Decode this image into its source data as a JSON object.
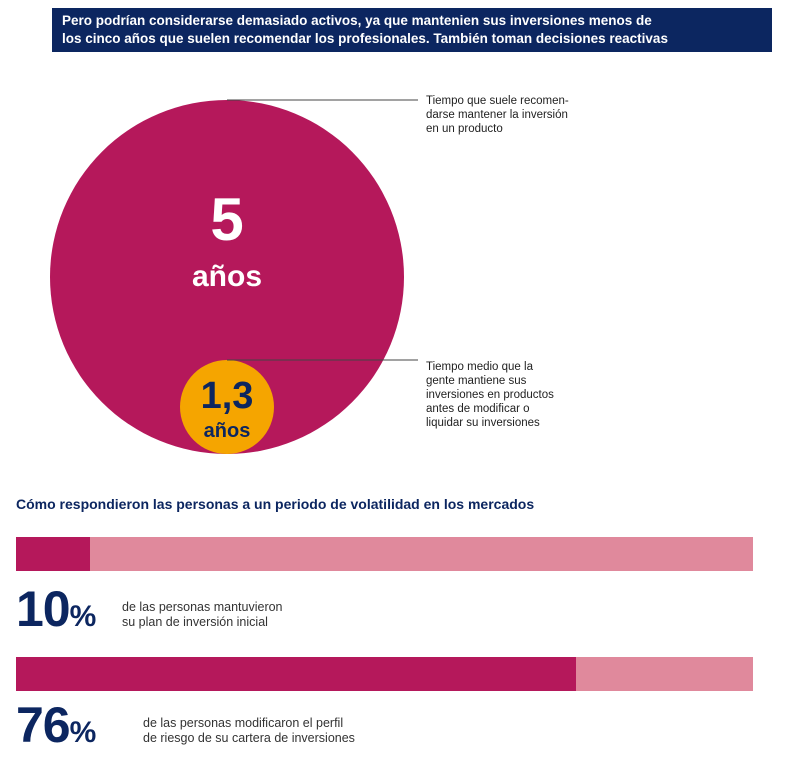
{
  "banner": {
    "line1": "Pero podrían considerarse demasiado activos, ya que mantenien sus inversiones menos de",
    "line2": "los cinco años que suelen recomendar los profesionales. También toman decisiones reactivas"
  },
  "circles": {
    "big": {
      "value": "5",
      "unit": "años",
      "color": "#b5185b",
      "annotation": [
        "Tiempo que suele recomen-",
        "darse mantener la inversión",
        "en un producto"
      ]
    },
    "small": {
      "value": "1,3",
      "unit": "años",
      "color": "#f5a500",
      "annotation": [
        "Tiempo medio que la",
        "gente mantiene sus",
        "inversiones en productos",
        "antes de modificar o",
        "liquidar su inversiones"
      ]
    }
  },
  "section_title": "Cómo respondieron las personas a un periodo de volatilidad en los mercados",
  "chart_data": {
    "type": "bar",
    "title": "Cómo respondieron las personas a un periodo de volatilidad en los mercados",
    "orientation": "horizontal",
    "ylim": [
      0,
      100
    ],
    "values": [
      10,
      76
    ],
    "labels": [
      "10%",
      "76%"
    ],
    "descriptions": [
      [
        "de las personas mantuvieron",
        "su plan de inversión inicial"
      ],
      [
        "de las personas modificaron el perfil",
        "de riesgo de su cartera de inversiones"
      ]
    ]
  },
  "stats": [
    {
      "number": "10",
      "pct": "%",
      "desc1": "de las personas mantuvieron",
      "desc2": "su plan de inversión inicial"
    },
    {
      "number": "76",
      "pct": "%",
      "desc1": "de las personas modificaron el perfil",
      "desc2": "de riesgo de su cartera de inversiones"
    }
  ],
  "colors": {
    "navy": "#0c2660",
    "magenta": "#b5185b",
    "pink": "#e0899c",
    "orange": "#f5a500"
  }
}
